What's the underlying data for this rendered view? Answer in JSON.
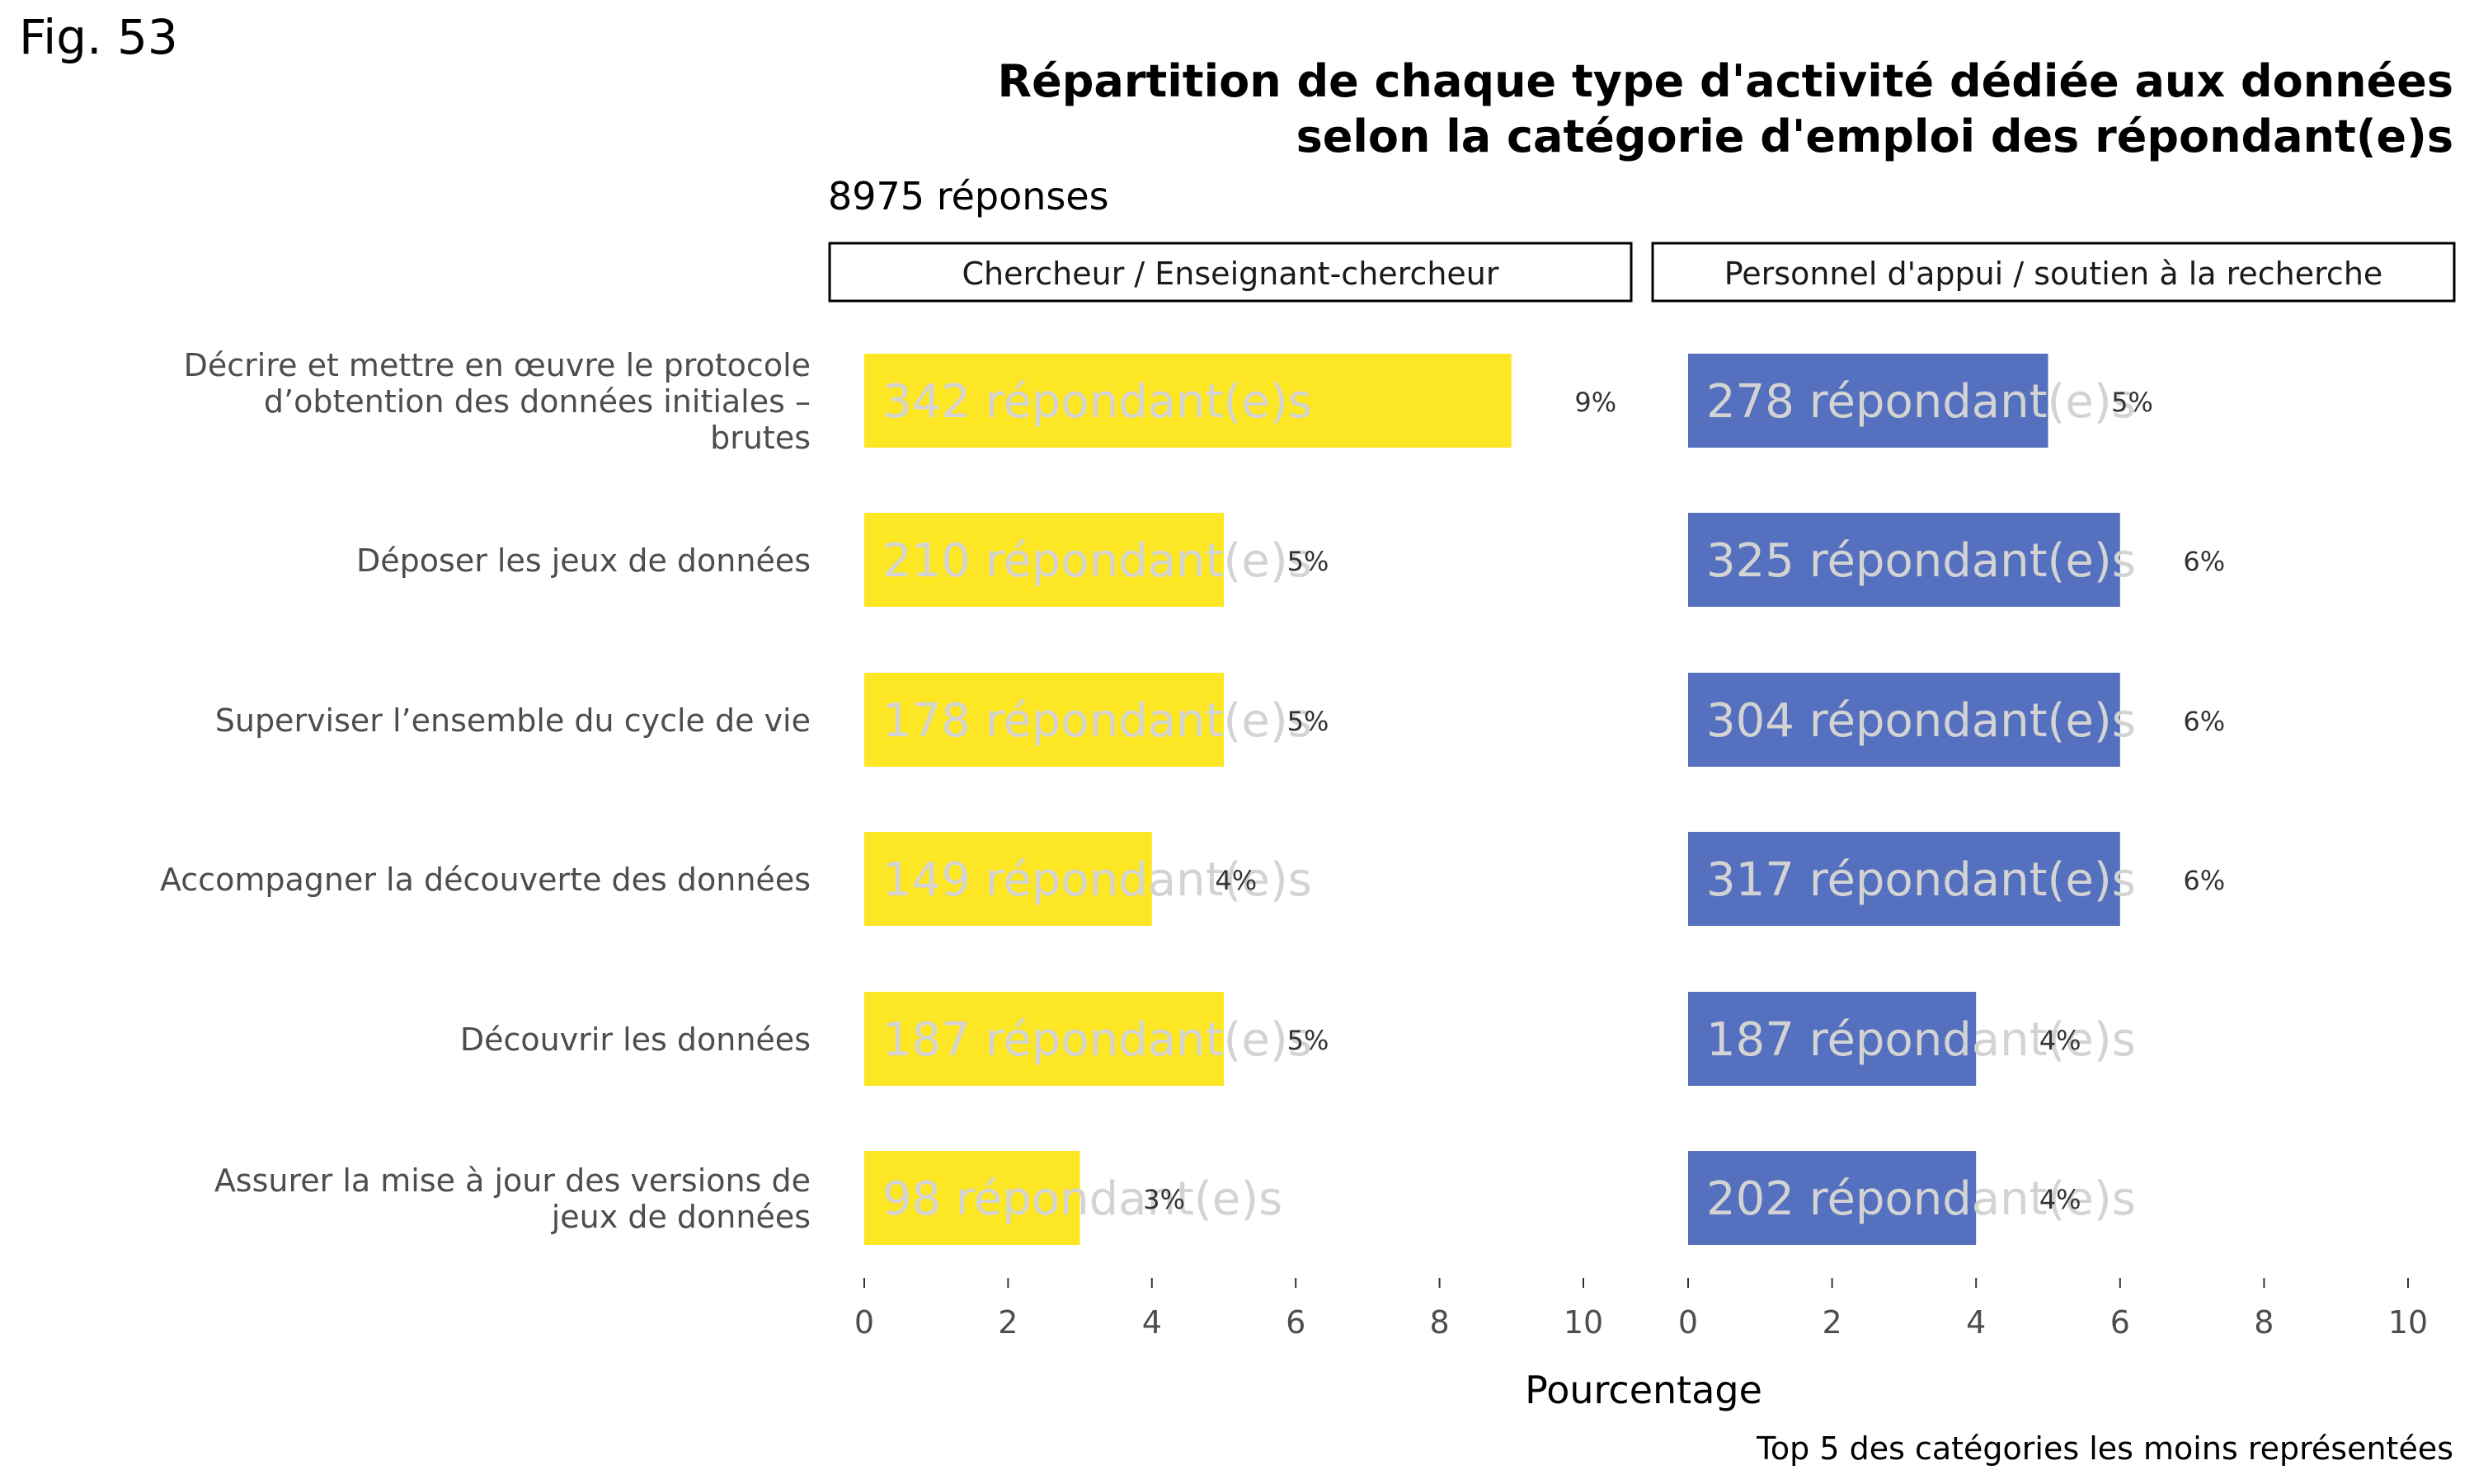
{
  "fig_label": "Fig. 53",
  "chart_data": {
    "type": "bar",
    "orientation": "horizontal",
    "title_lines": [
      "Répartition de chaque type d'activité dédiée aux données",
      "selon la catégorie d'emploi des répondant(e)s"
    ],
    "subtitle": "8975 réponses",
    "xlabel": "Pourcentage",
    "caption": "Top 5 des catégories les moins représentées",
    "xlim": [
      0,
      10
    ],
    "x_ticks": [
      0,
      2,
      4,
      6,
      8,
      10
    ],
    "grid": false,
    "categories": [
      [
        "Décrire et mettre en œuvre le protocole",
        "d’obtention des données initiales –",
        "brutes"
      ],
      [
        "Déposer les jeux de données"
      ],
      [
        "Superviser l’ensemble du cycle de vie"
      ],
      [
        "Accompagner la découverte des données"
      ],
      [
        "Découvrir les données"
      ],
      [
        "Assurer la mise à jour des versions de",
        "jeux de données"
      ]
    ],
    "panels": [
      {
        "name": "Chercheur / Enseignant-chercheur",
        "color": "#FDE725",
        "count_text_color": "#D3D3D3",
        "values": [
          9,
          5,
          5,
          4,
          5,
          3
        ],
        "pct_labels": [
          "9%",
          "5%",
          "5%",
          "4%",
          "5%",
          "3%"
        ],
        "count_labels": [
          "342 répondant(e)s",
          "210 répondant(e)s",
          "178 répondant(e)s",
          "149 répondant(e)s",
          "187 répondant(e)s",
          "98 répondant(e)s"
        ]
      },
      {
        "name": "Personnel d'appui / soutien à la recherche",
        "color": "#5470BE",
        "count_text_color": "#D3D3D3",
        "values": [
          5,
          6,
          6,
          6,
          4,
          4
        ],
        "pct_labels": [
          "5%",
          "6%",
          "6%",
          "6%",
          "4%",
          "4%"
        ],
        "count_labels": [
          "278 répondant(e)s",
          "325 répondant(e)s",
          "304 répondant(e)s",
          "317 répondant(e)s",
          "187 répondant(e)s",
          "202 répondant(e)s"
        ]
      }
    ]
  }
}
